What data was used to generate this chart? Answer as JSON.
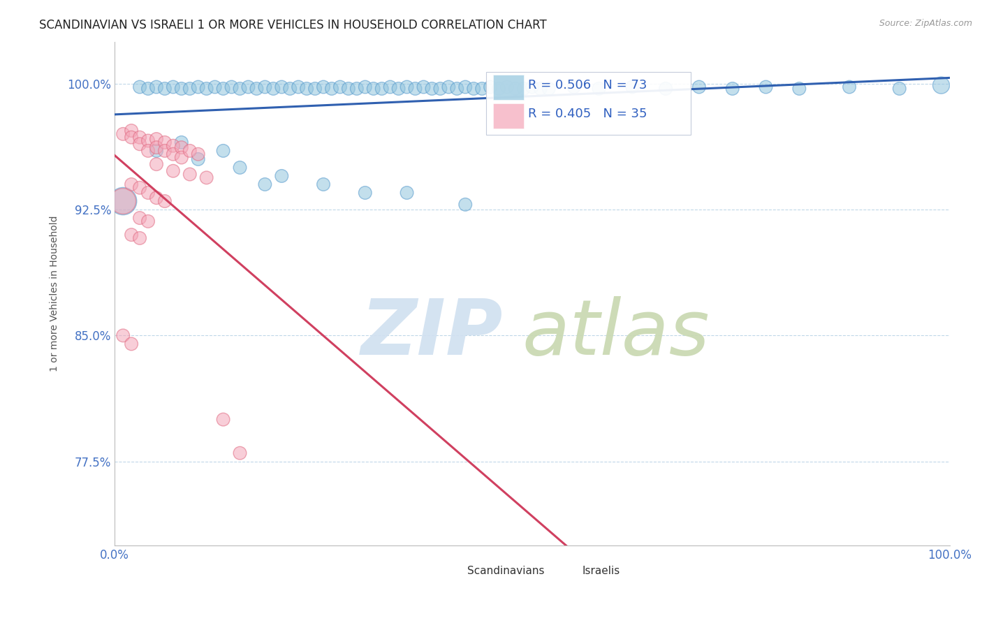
{
  "title": "SCANDINAVIAN VS ISRAELI 1 OR MORE VEHICLES IN HOUSEHOLD CORRELATION CHART",
  "source": "Source: ZipAtlas.com",
  "ylabel": "1 or more Vehicles in Household",
  "xlim": [
    0,
    1
  ],
  "ylim": [
    0.725,
    1.025
  ],
  "yticks": [
    0.775,
    0.85,
    0.925,
    1.0
  ],
  "ytick_labels": [
    "77.5%",
    "85.0%",
    "92.5%",
    "100.0%"
  ],
  "xtick_labels": [
    "0.0%",
    "100.0%"
  ],
  "scandinavian_color": "#92c5de",
  "scandinavian_edge": "#5599cc",
  "israeli_color": "#f4a6b8",
  "israeli_edge": "#e06880",
  "trendline_scand_color": "#3060b0",
  "trendline_israel_color": "#d04060",
  "background_color": "#ffffff",
  "grid_color": "#c0d8e8",
  "scand_R": 0.506,
  "scand_N": 73,
  "israel_R": 0.405,
  "israel_N": 35,
  "legend_box_color": "#f0f4ff",
  "legend_border_color": "#c0c8d8",
  "watermark_zip_color": "#d0e0f0",
  "watermark_atlas_color": "#c8d8b0"
}
